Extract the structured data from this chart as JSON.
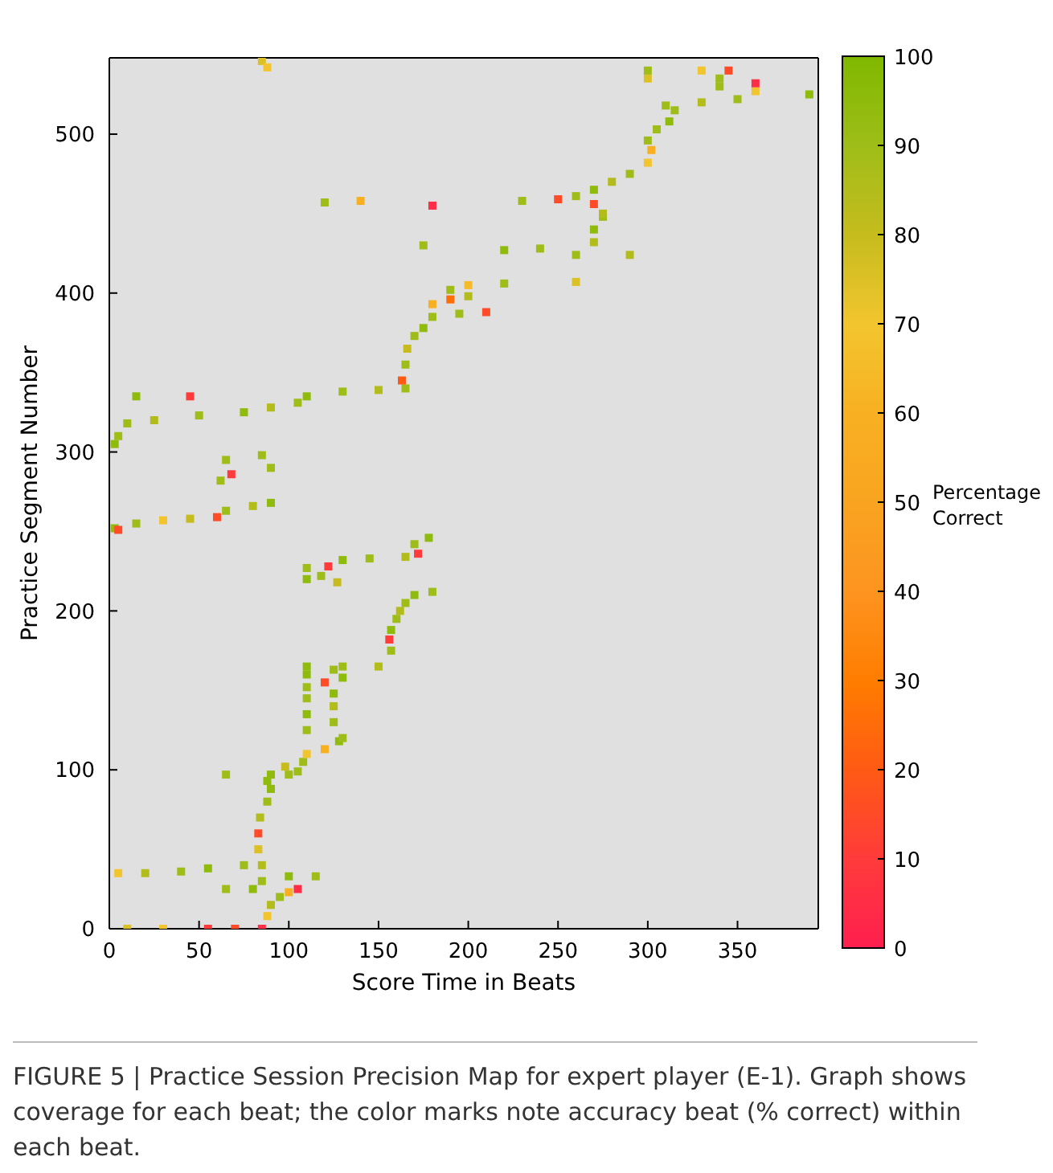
{
  "chart_data": {
    "type": "scatter",
    "xlabel": "Score Time in Beats",
    "ylabel": "Practice Segment Number",
    "clabel": "Percentage Correct",
    "marker": "square",
    "legend": false,
    "grid": false,
    "xlim": [
      0,
      395
    ],
    "xticks": [
      0,
      50,
      100,
      150,
      200,
      250,
      300,
      350
    ],
    "ylim": [
      0,
      548
    ],
    "yticks": [
      0,
      100,
      200,
      300,
      400,
      500
    ],
    "clim": [
      0,
      100
    ],
    "cticks": [
      0,
      10,
      20,
      30,
      40,
      50,
      60,
      70,
      80,
      90,
      100
    ],
    "x": [
      10,
      30,
      55,
      70,
      85,
      88,
      90,
      95,
      100,
      105,
      65,
      80,
      85,
      100,
      115,
      5,
      20,
      40,
      55,
      75,
      85,
      83,
      83,
      84,
      88,
      90,
      88,
      100,
      105,
      65,
      90,
      98,
      108,
      110,
      120,
      128,
      130,
      110,
      125,
      110,
      125,
      110,
      125,
      110,
      120,
      130,
      110,
      125,
      110,
      130,
      150,
      157,
      156,
      157,
      160,
      162,
      165,
      170,
      180,
      110,
      118,
      127,
      110,
      122,
      130,
      145,
      165,
      172,
      170,
      178,
      3,
      5,
      15,
      30,
      45,
      60,
      65,
      80,
      90,
      62,
      68,
      65,
      85,
      90,
      3,
      5,
      10,
      25,
      50,
      75,
      90,
      105,
      110,
      130,
      150,
      165,
      15,
      45,
      163,
      165,
      166,
      170,
      175,
      180,
      195,
      210,
      180,
      190,
      200,
      190,
      200,
      220,
      260,
      220,
      240,
      270,
      270,
      275,
      270,
      275,
      230,
      250,
      260,
      270,
      280,
      290,
      300,
      302,
      300,
      305,
      312,
      315,
      310,
      330,
      350,
      390,
      360,
      340,
      300,
      340,
      360,
      300,
      330,
      345,
      85,
      88,
      120,
      140,
      180,
      175,
      260,
      290
    ],
    "values": [
      0,
      0,
      0,
      0,
      0,
      8,
      15,
      20,
      23,
      25,
      25,
      25,
      30,
      33,
      33,
      35,
      35,
      36,
      38,
      40,
      40,
      50,
      60,
      70,
      80,
      88,
      93,
      97,
      99,
      97,
      97,
      102,
      105,
      110,
      113,
      118,
      120,
      125,
      130,
      135,
      140,
      145,
      148,
      152,
      155,
      158,
      160,
      163,
      165,
      165,
      165,
      175,
      182,
      188,
      195,
      200,
      205,
      210,
      212,
      220,
      222,
      218,
      227,
      228,
      232,
      233,
      234,
      236,
      242,
      246,
      252,
      251,
      255,
      257,
      258,
      259,
      263,
      266,
      268,
      282,
      286,
      295,
      298,
      290,
      305,
      310,
      318,
      320,
      323,
      325,
      328,
      331,
      335,
      338,
      339,
      340,
      335,
      335,
      345,
      355,
      365,
      373,
      378,
      385,
      387,
      388,
      393,
      396,
      398,
      402,
      405,
      406,
      407,
      427,
      428,
      432,
      440,
      448,
      456,
      450,
      458,
      459,
      461,
      465,
      470,
      475,
      482,
      490,
      496,
      503,
      508,
      515,
      518,
      520,
      522,
      525,
      527,
      530,
      535,
      535,
      532,
      540,
      540,
      540,
      546,
      542,
      457,
      458,
      455,
      430,
      424,
      424
    ],
    "cvalues": [
      75,
      70,
      10,
      15,
      5,
      70,
      85,
      90,
      60,
      5,
      90,
      95,
      90,
      95,
      90,
      70,
      85,
      90,
      95,
      90,
      85,
      75,
      15,
      85,
      90,
      95,
      95,
      90,
      90,
      90,
      95,
      80,
      90,
      70,
      60,
      95,
      90,
      90,
      90,
      95,
      85,
      90,
      95,
      90,
      15,
      95,
      95,
      90,
      95,
      90,
      85,
      90,
      10,
      95,
      90,
      85,
      90,
      95,
      90,
      95,
      90,
      80,
      90,
      10,
      95,
      90,
      85,
      10,
      90,
      95,
      95,
      15,
      90,
      70,
      80,
      15,
      90,
      85,
      95,
      90,
      10,
      90,
      90,
      90,
      95,
      90,
      90,
      85,
      90,
      95,
      85,
      90,
      95,
      90,
      85,
      90,
      95,
      10,
      20,
      90,
      80,
      90,
      95,
      90,
      90,
      15,
      60,
      25,
      85,
      90,
      65,
      90,
      75,
      95,
      90,
      85,
      95,
      90,
      15,
      85,
      90,
      15,
      90,
      95,
      85,
      90,
      70,
      60,
      90,
      90,
      95,
      90,
      90,
      85,
      90,
      95,
      70,
      90,
      75,
      90,
      5,
      90,
      70,
      15,
      75,
      70,
      90,
      60,
      5,
      90,
      90,
      85
    ],
    "annotations": [
      "FIGURE 5 | Practice Session Precision Map for expert player (E-1). Graph shows coverage for each beat; the color marks note accuracy beat (% correct) within each beat."
    ]
  }
}
